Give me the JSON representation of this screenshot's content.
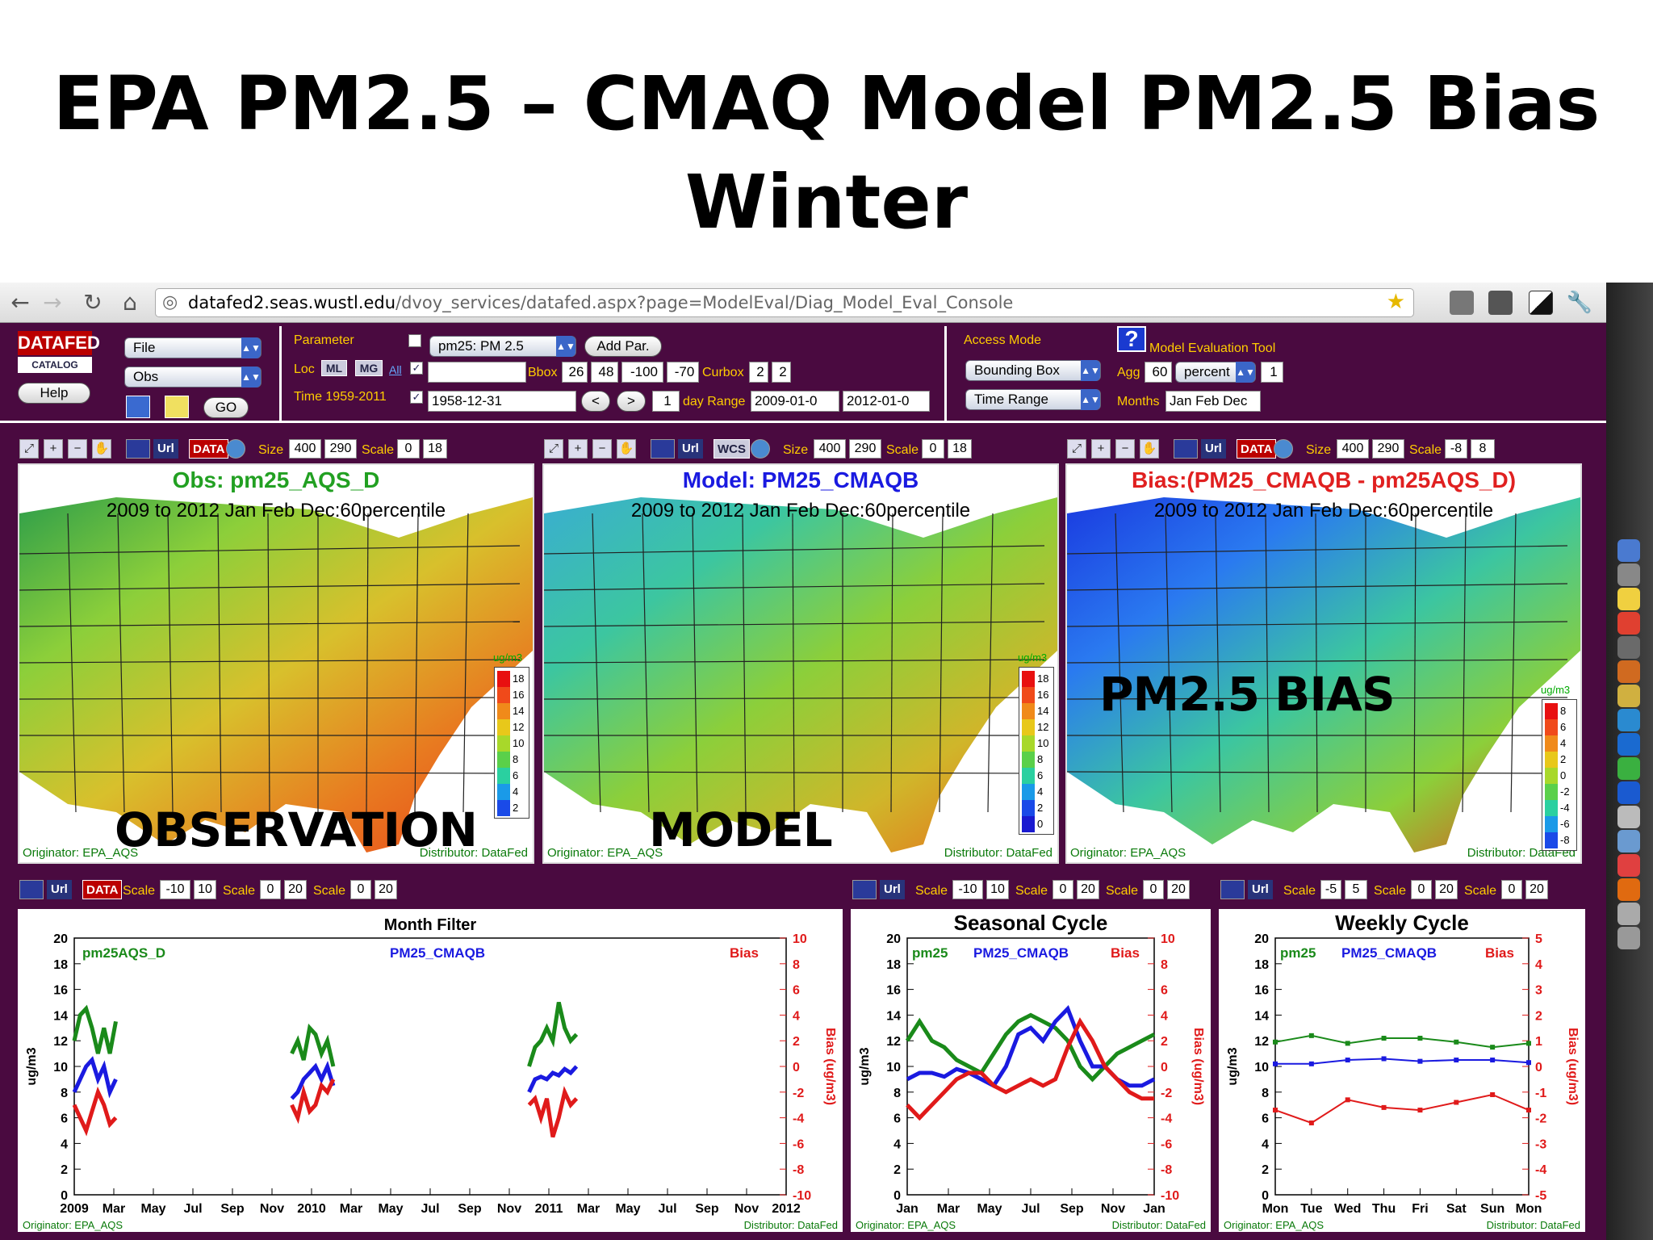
{
  "slide": {
    "title_line1": "EPA PM2.5 – CMAQ Model PM2.5 Bias",
    "title_line2": "Winter"
  },
  "browser": {
    "url_host": "datafed2.seas.wustl.edu",
    "url_path": "/dvoy_services/datafed.aspx?page=ModelEval/Diag_Model_Eval_Console"
  },
  "toolbar": {
    "logo_text": "DATAFED",
    "logo_sub": "CATALOG",
    "help": "Help",
    "file": "File",
    "obs": "Obs",
    "go": "GO",
    "parameter_label": "Parameter",
    "parameter_value": "pm25: PM 2.5",
    "add_par": "Add Par.",
    "loc_label": "Loc",
    "loc_ml": "ML",
    "loc_mg": "MG",
    "loc_all": "All",
    "bbox_label": "Bbox",
    "bbox": [
      "26",
      "48",
      "-100",
      "-70"
    ],
    "curbox_label": "Curbox",
    "curbox": [
      "2",
      "2"
    ],
    "time_label": "Time 1959-2011",
    "time_value": "1958-12-31",
    "prev": "<",
    "next": ">",
    "step": "1",
    "day_range_label": "day Range",
    "range_start": "2009-01-0",
    "range_end": "2012-01-0",
    "access_mode_label": "Access Mode",
    "access_mode": "Bounding Box",
    "time_range": "Time Range",
    "help_q": "?",
    "tool_title": "Model Evaluation Tool",
    "agg_label": "Agg",
    "agg_value": "60",
    "agg_unit": "percent",
    "agg_n": "1",
    "months_label": "Months",
    "months_value": "Jan Feb Dec"
  },
  "maps": [
    {
      "url": "Url",
      "data_btn": "DATA",
      "size_label": "Size",
      "size_w": "400",
      "size_h": "290",
      "scale_label": "Scale",
      "scale_min": "0",
      "scale_max": "18",
      "title": "Obs: pm25_AQS_D",
      "title_color": "#22a022",
      "subtitle": "2009 to 2012 Jan Feb Dec:60percentile",
      "overlay": "OBSERVATION",
      "originator": "Originator: EPA_AQS",
      "distributor": "Distributor: DataFed",
      "legend_unit": "ug/m3",
      "legend_ticks": [
        "18",
        "16",
        "14",
        "12",
        "10",
        "8",
        "6",
        "4",
        "2"
      ]
    },
    {
      "url": "Url",
      "data_btn": "WCS",
      "size_label": "Size",
      "size_w": "400",
      "size_h": "290",
      "scale_label": "Scale",
      "scale_min": "0",
      "scale_max": "18",
      "title": "Model: PM25_CMAQB",
      "title_color": "#1a1ae0",
      "subtitle": "2009 to 2012 Jan Feb Dec:60percentile",
      "overlay": "MODEL",
      "originator": "Originator: EPA_AQS",
      "distributor": "Distributor: DataFed",
      "legend_unit": "ug/m3",
      "legend_ticks": [
        "18",
        "16",
        "14",
        "12",
        "10",
        "8",
        "6",
        "4",
        "2",
        "0"
      ]
    },
    {
      "url": "Url",
      "data_btn": "DATA",
      "size_label": "Size",
      "size_w": "400",
      "size_h": "290",
      "scale_label": "Scale",
      "scale_min": "-8",
      "scale_max": "8",
      "title": "Bias:(PM25_CMAQB - pm25AQS_D)",
      "title_color": "#e02020",
      "subtitle": "2009 to 2012 Jan Feb Dec:60percentile",
      "overlay": "PM2.5 BIAS",
      "originator": "Originator: EPA_AQS",
      "distributor": "Distributor: DataFed",
      "legend_unit": "ug/m3",
      "legend_ticks": [
        "8",
        "6",
        "4",
        "2",
        "0",
        "-2",
        "-4",
        "-6",
        "-8"
      ]
    }
  ],
  "chart_bars": [
    {
      "url": "Url",
      "data_btn": "DATA",
      "scales": [
        [
          "Scale",
          "-10",
          "10"
        ],
        [
          "Scale",
          "0",
          "20"
        ],
        [
          "Scale",
          "0",
          "20"
        ]
      ]
    },
    {
      "url": "Url",
      "scales": [
        [
          "Scale",
          "-10",
          "10"
        ],
        [
          "Scale",
          "0",
          "20"
        ],
        [
          "Scale",
          "0",
          "20"
        ]
      ]
    },
    {
      "url": "Url",
      "scales": [
        [
          "Scale",
          "-5",
          "5"
        ],
        [
          "Scale",
          "0",
          "20"
        ],
        [
          "Scale",
          "0",
          "20"
        ]
      ]
    }
  ],
  "chart_data": [
    {
      "type": "line",
      "title": "Month Filter",
      "ylabel": "ug/m3",
      "y2label": "Bias (ug/m3)",
      "ylim": [
        0,
        20
      ],
      "y2lim": [
        -10,
        10
      ],
      "yticks": [
        "20",
        "18",
        "16",
        "14",
        "12",
        "10",
        "8",
        "6",
        "4",
        "2",
        "0"
      ],
      "y2ticks": [
        "10",
        "8",
        "6",
        "4",
        "2",
        "0",
        "-2",
        "-4",
        "-6",
        "-8",
        "-10"
      ],
      "xticks": [
        "2009",
        "Mar",
        "May",
        "Jul",
        "Sep",
        "Nov",
        "2010",
        "Mar",
        "May",
        "Jul",
        "Sep",
        "Nov",
        "2011",
        "Mar",
        "May",
        "Jul",
        "Sep",
        "Nov",
        "2012"
      ],
      "series": [
        {
          "name": "pm25AQS_D",
          "color": "#1a8a1a",
          "axis": "left",
          "segments": [
            [
              [
                0,
                12
              ],
              [
                0.3,
                14
              ],
              [
                0.6,
                14.5
              ],
              [
                0.9,
                13
              ],
              [
                1.2,
                11
              ],
              [
                1.5,
                13
              ],
              [
                1.8,
                11
              ],
              [
                2.1,
                13.5
              ]
            ],
            [
              [
                11,
                11
              ],
              [
                11.3,
                12
              ],
              [
                11.6,
                10.5
              ],
              [
                11.9,
                13
              ],
              [
                12.2,
                12.5
              ],
              [
                12.5,
                11
              ],
              [
                12.8,
                12
              ],
              [
                13.1,
                10
              ]
            ],
            [
              [
                23,
                10
              ],
              [
                23.3,
                11.5
              ],
              [
                23.6,
                12
              ],
              [
                23.9,
                13
              ],
              [
                24.2,
                12
              ],
              [
                24.5,
                15
              ],
              [
                24.8,
                13
              ],
              [
                25.1,
                12
              ],
              [
                25.4,
                12.5
              ]
            ]
          ]
        },
        {
          "name": "PM25_CMAQB",
          "color": "#1a1ae0",
          "axis": "left",
          "segments": [
            [
              [
                0,
                8
              ],
              [
                0.3,
                9
              ],
              [
                0.6,
                10
              ],
              [
                0.9,
                10.5
              ],
              [
                1.2,
                9
              ],
              [
                1.5,
                10
              ],
              [
                1.8,
                8
              ],
              [
                2.1,
                9
              ]
            ],
            [
              [
                11,
                7.5
              ],
              [
                11.3,
                8
              ],
              [
                11.6,
                9
              ],
              [
                11.9,
                9.5
              ],
              [
                12.2,
                10
              ],
              [
                12.5,
                9
              ],
              [
                12.8,
                10
              ],
              [
                13.1,
                8.5
              ]
            ],
            [
              [
                23,
                8
              ],
              [
                23.3,
                9
              ],
              [
                23.6,
                9.2
              ],
              [
                23.9,
                9
              ],
              [
                24.2,
                9.5
              ],
              [
                24.5,
                9.3
              ],
              [
                24.8,
                9.8
              ],
              [
                25.1,
                9.5
              ],
              [
                25.4,
                10
              ]
            ]
          ]
        },
        {
          "name": "Bias",
          "color": "#e01a1a",
          "axis": "right",
          "segments": [
            [
              [
                0,
                -3
              ],
              [
                0.3,
                -4
              ],
              [
                0.6,
                -5
              ],
              [
                0.9,
                -3.5
              ],
              [
                1.2,
                -2
              ],
              [
                1.5,
                -3
              ],
              [
                1.8,
                -4.5
              ],
              [
                2.1,
                -4
              ]
            ],
            [
              [
                11,
                -3
              ],
              [
                11.3,
                -4
              ],
              [
                11.6,
                -2
              ],
              [
                11.9,
                -3.5
              ],
              [
                12.2,
                -3
              ],
              [
                12.5,
                -1.5
              ],
              [
                12.8,
                -2
              ],
              [
                13.1,
                -1
              ]
            ],
            [
              [
                23,
                -3
              ],
              [
                23.3,
                -2.5
              ],
              [
                23.6,
                -4
              ],
              [
                23.9,
                -2.5
              ],
              [
                24.2,
                -5.5
              ],
              [
                24.5,
                -4
              ],
              [
                24.8,
                -2
              ],
              [
                25.1,
                -3
              ],
              [
                25.4,
                -2.5
              ]
            ]
          ]
        }
      ],
      "originator": "Originator: EPA_AQS",
      "distributor": "Distributor: DataFed"
    },
    {
      "type": "line",
      "title": "Seasonal Cycle",
      "ylabel": "ug/m3",
      "y2label": "Bias (ug/m3)",
      "ylim": [
        0,
        20
      ],
      "y2lim": [
        -10,
        10
      ],
      "yticks": [
        "20",
        "18",
        "16",
        "14",
        "12",
        "10",
        "8",
        "6",
        "4",
        "2",
        "0"
      ],
      "y2ticks": [
        "10",
        "8",
        "6",
        "4",
        "2",
        "0",
        "-2",
        "-4",
        "-6",
        "-8",
        "-10"
      ],
      "xticks": [
        "Jan",
        "Mar",
        "May",
        "Jul",
        "Sep",
        "Nov",
        "Jan"
      ],
      "series": [
        {
          "name": "pm25",
          "color": "#1a8a1a",
          "axis": "left",
          "points": [
            [
              0,
              12
            ],
            [
              0.5,
              13.5
            ],
            [
              1,
              12
            ],
            [
              1.5,
              11.5
            ],
            [
              2,
              10.5
            ],
            [
              2.5,
              10
            ],
            [
              3,
              9.5
            ],
            [
              3.5,
              11
            ],
            [
              4,
              12.5
            ],
            [
              4.5,
              13.5
            ],
            [
              5,
              14
            ],
            [
              5.5,
              13.5
            ],
            [
              6,
              13
            ],
            [
              6.5,
              12
            ],
            [
              7,
              10
            ],
            [
              7.5,
              9
            ],
            [
              8,
              10
            ],
            [
              8.5,
              11
            ],
            [
              9,
              11.5
            ],
            [
              9.5,
              12
            ],
            [
              10,
              12.5
            ]
          ]
        },
        {
          "name": "PM25_CMAQB",
          "color": "#1a1ae0",
          "axis": "left",
          "points": [
            [
              0,
              9
            ],
            [
              0.5,
              9.5
            ],
            [
              1,
              9.5
            ],
            [
              1.5,
              9.2
            ],
            [
              2,
              9.8
            ],
            [
              2.5,
              9.5
            ],
            [
              3,
              9
            ],
            [
              3.5,
              8.5
            ],
            [
              4,
              10
            ],
            [
              4.5,
              12.5
            ],
            [
              5,
              13
            ],
            [
              5.5,
              12
            ],
            [
              6,
              13.5
            ],
            [
              6.5,
              14.5
            ],
            [
              7,
              12
            ],
            [
              7.5,
              10
            ],
            [
              8,
              10
            ],
            [
              8.5,
              9
            ],
            [
              9,
              8.5
            ],
            [
              9.5,
              8.5
            ],
            [
              10,
              9
            ]
          ]
        },
        {
          "name": "Bias",
          "color": "#e01a1a",
          "axis": "right",
          "points": [
            [
              0,
              -3
            ],
            [
              0.5,
              -4
            ],
            [
              1,
              -3
            ],
            [
              1.5,
              -2
            ],
            [
              2,
              -1
            ],
            [
              2.5,
              -0.5
            ],
            [
              3,
              -0.5
            ],
            [
              3.5,
              -1.5
            ],
            [
              4,
              -2
            ],
            [
              4.5,
              -1.5
            ],
            [
              5,
              -1
            ],
            [
              5.5,
              -1.5
            ],
            [
              6,
              -1
            ],
            [
              6.5,
              1.5
            ],
            [
              7,
              3.5
            ],
            [
              7.5,
              2
            ],
            [
              8,
              0
            ],
            [
              8.5,
              -1
            ],
            [
              9,
              -2
            ],
            [
              9.5,
              -2.5
            ],
            [
              10,
              -2.5
            ]
          ]
        }
      ],
      "originator": "Originator: EPA_AQS",
      "distributor": "Distributor: DataFed"
    },
    {
      "type": "line",
      "title": "Weekly Cycle",
      "ylabel": "ug/m3",
      "y2label": "Bias (ug/m3)",
      "ylim": [
        0,
        20
      ],
      "y2lim": [
        -5,
        5
      ],
      "yticks": [
        "20",
        "18",
        "16",
        "14",
        "12",
        "10",
        "8",
        "6",
        "4",
        "2",
        "0"
      ],
      "y2ticks": [
        "5",
        "4",
        "3",
        "2",
        "1",
        "0",
        "-1",
        "-2",
        "-3",
        "-4",
        "-5"
      ],
      "xticks": [
        "Mon",
        "Tue",
        "Wed",
        "Thu",
        "Fri",
        "Sat",
        "Sun",
        "Mon"
      ],
      "series": [
        {
          "name": "pm25",
          "color": "#1a8a1a",
          "axis": "left",
          "points": [
            [
              0,
              11.9
            ],
            [
              1,
              12.4
            ],
            [
              2,
              11.8
            ],
            [
              3,
              12.2
            ],
            [
              4,
              12.2
            ],
            [
              5,
              11.9
            ],
            [
              6,
              11.5
            ],
            [
              7,
              11.8
            ]
          ]
        },
        {
          "name": "PM25_CMAQB",
          "color": "#1a1ae0",
          "axis": "left",
          "points": [
            [
              0,
              10.2
            ],
            [
              1,
              10.2
            ],
            [
              2,
              10.5
            ],
            [
              3,
              10.6
            ],
            [
              4,
              10.4
            ],
            [
              5,
              10.5
            ],
            [
              6,
              10.5
            ],
            [
              7,
              10.3
            ]
          ]
        },
        {
          "name": "Bias",
          "color": "#e01a1a",
          "axis": "right",
          "points": [
            [
              0,
              -1.7
            ],
            [
              1,
              -2.2
            ],
            [
              2,
              -1.3
            ],
            [
              3,
              -1.6
            ],
            [
              4,
              -1.7
            ],
            [
              5,
              -1.4
            ],
            [
              6,
              -1.1
            ],
            [
              7,
              -1.7
            ]
          ]
        }
      ],
      "originator": "Originator: EPA_AQS",
      "distributor": "Distributor: DataFed"
    }
  ]
}
